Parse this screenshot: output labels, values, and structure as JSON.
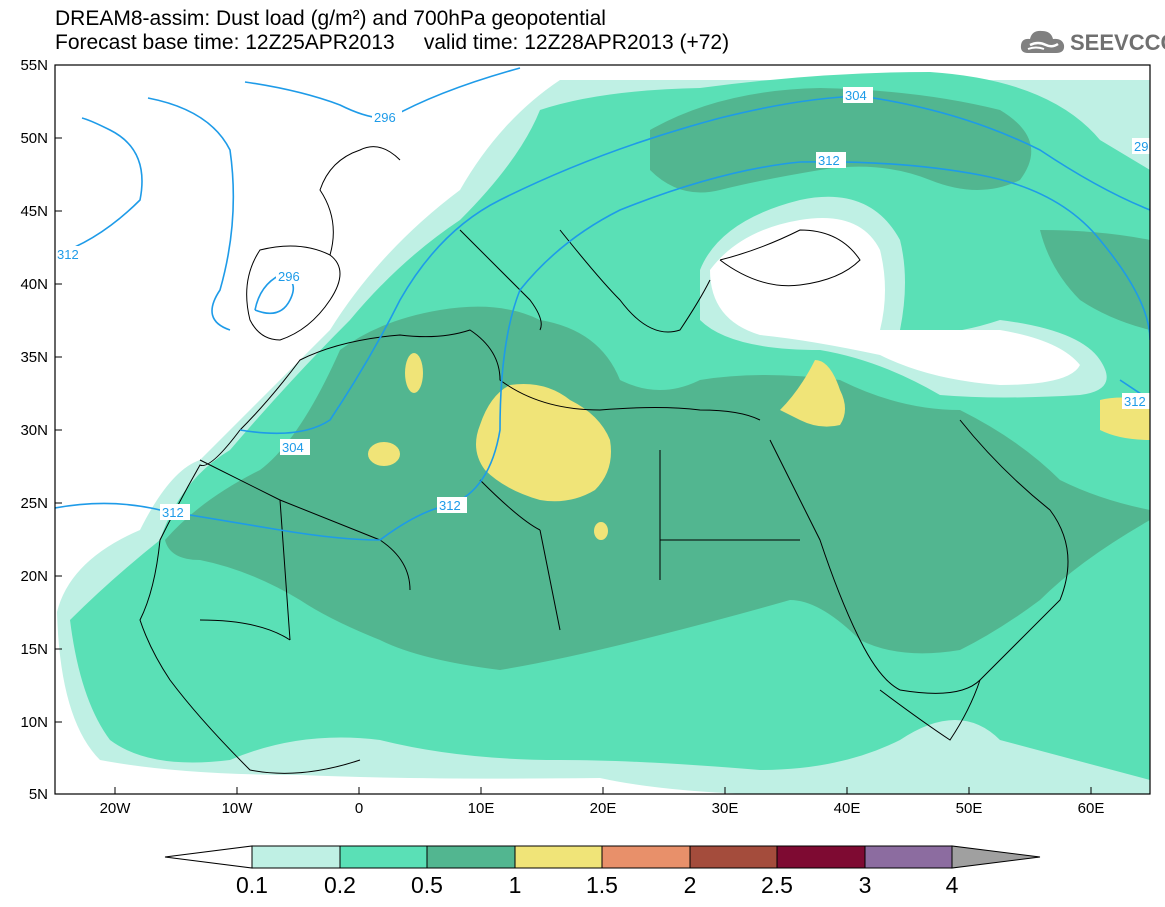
{
  "title_line1": "DREAM8-assim: Dust load (g/m²) and 700hPa geopotential",
  "title_line2": "Forecast base time: 12Z25APR2013     valid time: 12Z28APR2013 (+72)",
  "logo_text": "SEEVCCC",
  "logo_icon": "cloud-icon",
  "map": {
    "lat_labels": [
      "55N",
      "50N",
      "45N",
      "40N",
      "35N",
      "30N",
      "25N",
      "20N",
      "15N",
      "10N",
      "5N"
    ],
    "lon_labels": [
      "20W",
      "10W",
      "0",
      "10E",
      "20E",
      "30E",
      "40E",
      "50E",
      "60E"
    ],
    "contour_labels": [
      "296",
      "304",
      "304",
      "312",
      "312",
      "312",
      "296",
      "312",
      "29",
      "312"
    ]
  },
  "colorbar": {
    "labels": [
      "0.1",
      "0.2",
      "0.5",
      "1",
      "1.5",
      "2",
      "2.5",
      "3",
      "4"
    ],
    "colors": [
      "#ffffff",
      "#bff0e4",
      "#5ae0b6",
      "#52b690",
      "#f0e478",
      "#e8906a",
      "#a44c3c",
      "#7e0a32",
      "#8c6ca0",
      "#a0a0a0"
    ]
  },
  "colors": {
    "contour": "#1e9be8",
    "dust_0_1": "#bff0e4",
    "dust_0_2": "#5ae0b6",
    "dust_0_5": "#52b690",
    "dust_1": "#f0e478"
  }
}
